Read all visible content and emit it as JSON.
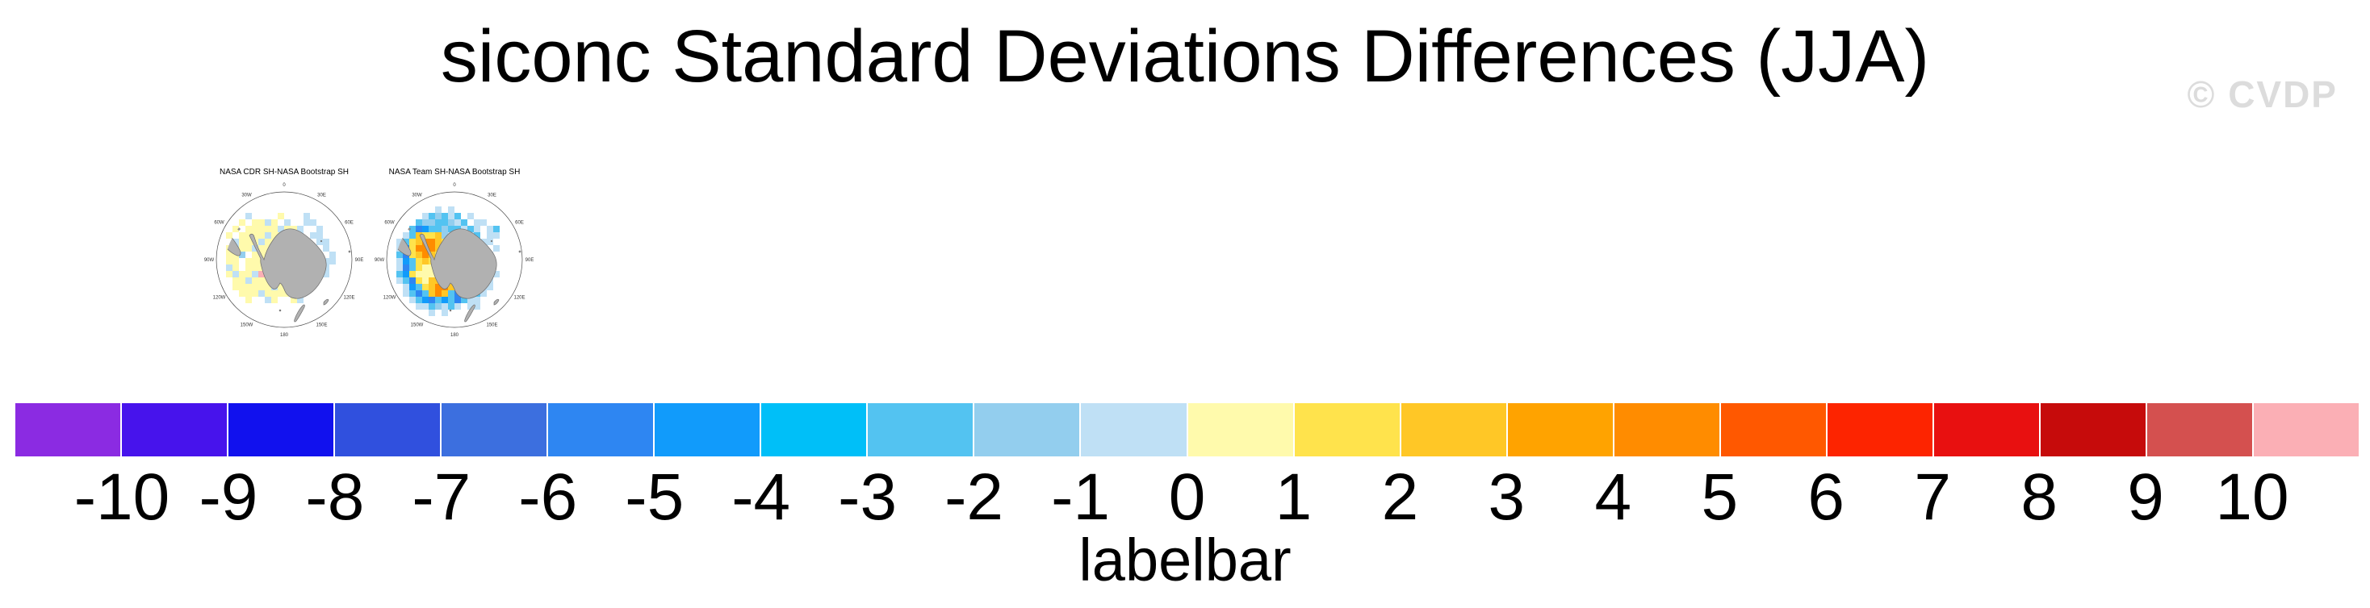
{
  "title": "siconc Standard Deviations Differences (JJA)",
  "watermark": "© CVDP",
  "style_colors": {
    "continent_fill": "#B1B1B1",
    "continent_stroke": "#6E6E6E",
    "circle_stroke": "#4A4A4A",
    "watermark_gray": "#DCDCDC"
  },
  "chart_data": {
    "type": "heatmap",
    "title": "siconc Standard Deviations Differences (JJA)",
    "variable": "siconc",
    "season": "JJA",
    "panels": [
      {
        "title": "NASA CDR SH-NASA Bootstrap SH",
        "grid": [
          "......................",
          "......................",
          ".....l....y...l.......",
          "....y.yyly.l..ll......",
          "...y.yyyyylyyl..l.....",
          "..y.yyyylyyyll.ll.....",
          "...lyyylyyyyyll.ll....",
          "..ylyylyyyyyyyll.l....",
          "..yyL.yyyyyyyyyl..l...",
          "..yy.yyyyyyyyyll.ll...",
          "..ly.yyyyyyyyyl..l....",
          "..ylyylpyyyyyyll.l....",
          "...yylyyyyyyylyl......",
          "...yyyyyylyyyyl.......",
          "....yyylyyyyll........",
          ".....y..ly..yl........",
          "......................",
          "......................",
          "......................"
        ]
      },
      {
        "title": "NASA Team SH-NASA Bootstrap SH",
        "grid": [
          "......................",
          "........l.l...........",
          "......lsLsls.l........",
          ".....sLLssLls.ll......",
          "....sDassLsslsl.ls....",
          "...lsgYYgLlssls.ll....",
          "..lsYgOOgYylsl.ll.....",
          "..lDYOOOgYyyllsl.l....",
          "..sDYgOgYyyyylsll.....",
          "..lasYgYyyyyyYlsl.....",
          "..lDsYyyyyyyyYsll.....",
          "..saYyyyyyyyYgllsl....",
          "..lsDYygggyyYylsl.....",
          "...lasYgOOggYylll.....",
          "...lsDsgOgsDylsl......",
          "....lsaDsasDsll.......",
          ".....llsLlsl.ll.......",
          ".......l.l............",
          "......................"
        ]
      }
    ],
    "map_ring_labels": [
      {
        "text": "0",
        "angle": 0
      },
      {
        "text": "30E",
        "angle": 30
      },
      {
        "text": "60E",
        "angle": 60
      },
      {
        "text": "90E",
        "angle": 90
      },
      {
        "text": "120E",
        "angle": 120
      },
      {
        "text": "150E",
        "angle": 150
      },
      {
        "text": "180",
        "angle": 180
      },
      {
        "text": "150W",
        "angle": 210
      },
      {
        "text": "120W",
        "angle": 240
      },
      {
        "text": "90W",
        "angle": 270
      },
      {
        "text": "60W",
        "angle": 300
      },
      {
        "text": "30W",
        "angle": 330
      }
    ],
    "cell_colors": {
      "l": "#BFE0F5",
      "L": "#93CEEE",
      "s": "#53C3F1",
      "c": "#00BFF8",
      "a": "#119BFB",
      "D": "#2E86F2",
      "y": "#FFFAAC",
      "Y": "#FFE34C",
      "g": "#FFC726",
      "o": "#FFA300",
      "O": "#FF8C00",
      "p": "#FBAFB5"
    },
    "cell_code_bins": {
      "l": "-1..0",
      "L": "-2..-1",
      "s": "-3..-2",
      "c": "-4..-3",
      "a": "-5..-4",
      "D": "-6..-5",
      "y": "0..1",
      "Y": "1..2",
      "g": "2..3",
      "o": "3..4",
      "O": "4..5",
      "p": ">10"
    },
    "labelbar": {
      "label": "labelbar",
      "ticks": [
        -10,
        -9,
        -8,
        -7,
        -6,
        -5,
        -4,
        -3,
        -2,
        -1,
        0,
        1,
        2,
        3,
        4,
        5,
        6,
        7,
        8,
        9,
        10
      ],
      "colors": [
        "#8B2BE2",
        "#4713EC",
        "#1111EE",
        "#3050DE",
        "#3C6FDF",
        "#2E86F2",
        "#119BFB",
        "#00BFF8",
        "#53C3F1",
        "#93CEEE",
        "#BFE0F5",
        "#FFFAAC",
        "#FFE34C",
        "#FFC726",
        "#FFA300",
        "#FF8C00",
        "#FF5800",
        "#FD2400",
        "#E81010",
        "#C60B0B",
        "#D4504F",
        "#FBAFB5"
      ]
    }
  }
}
